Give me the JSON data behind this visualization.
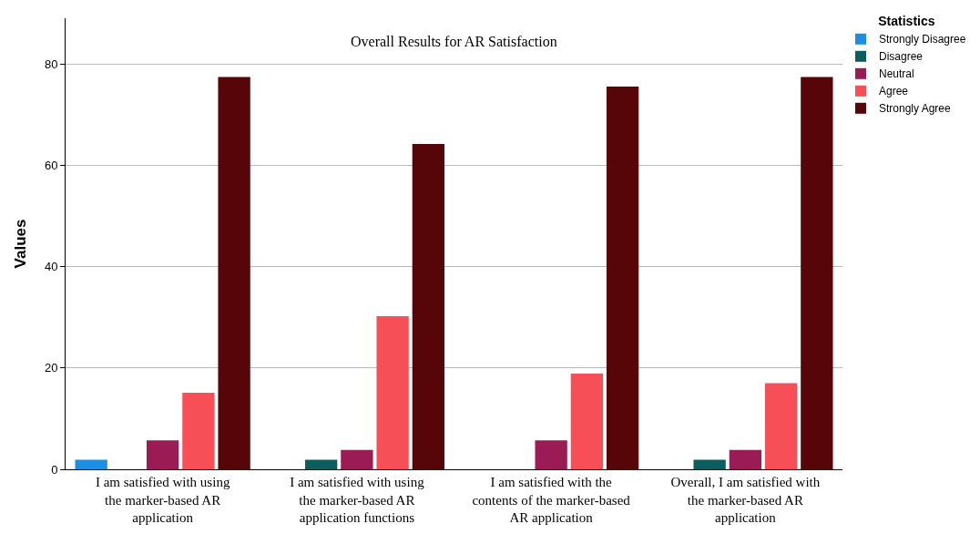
{
  "chart_data": {
    "type": "bar",
    "title": "Overall Results for AR Satisfaction",
    "ylabel": "Values",
    "legend_title": "Statistics",
    "categories": [
      "I am satisfied with using the marker-based AR application",
      "I am satisfied with using the marker-based AR application functions",
      "I am satisfied with the contents of the marker-based AR application",
      "Overall, I am satisfied with the marker-based AR application"
    ],
    "series": [
      {
        "name": "Strongly Disagree",
        "color": "#1a8fe3",
        "values": [
          1.9,
          null,
          null,
          null
        ]
      },
      {
        "name": "Disagree",
        "color": "#0b5e5e",
        "values": [
          null,
          1.9,
          null,
          1.9
        ]
      },
      {
        "name": "Neutral",
        "color": "#9b1b55",
        "values": [
          5.7,
          3.8,
          5.7,
          3.8
        ]
      },
      {
        "name": "Agree",
        "color": "#f74f58",
        "values": [
          15.1,
          30.2,
          18.9,
          17.0
        ]
      },
      {
        "name": "Strongly Agree",
        "color": "#560508",
        "values": [
          77.4,
          64.2,
          75.5,
          77.4
        ]
      }
    ],
    "ylim": [
      0,
      89
    ],
    "yticks": [
      0,
      20,
      40,
      60,
      80
    ],
    "grid": "y",
    "legend": "top right"
  }
}
